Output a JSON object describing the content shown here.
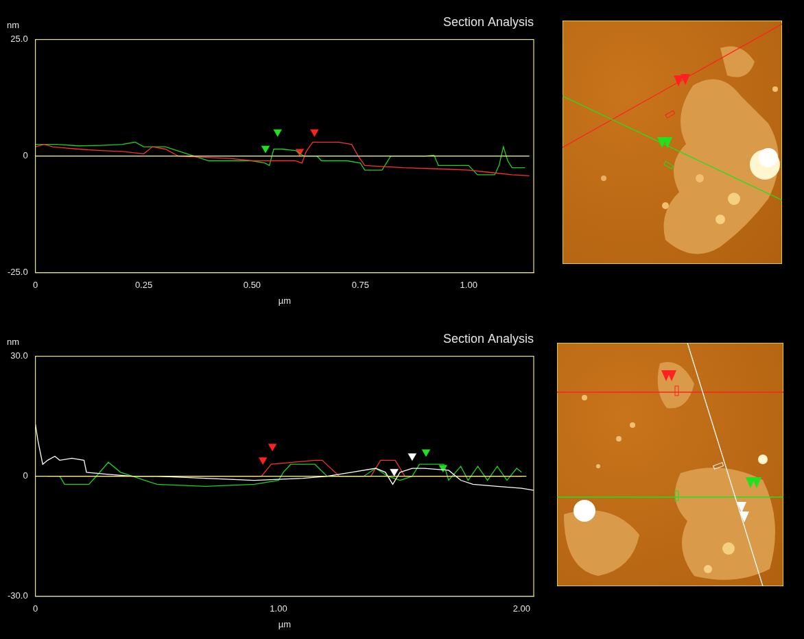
{
  "chart_data": [
    {
      "type": "line",
      "title": "Section Analysis",
      "x_label": "µm",
      "y_label": "nm",
      "xlim": [
        0,
        1.15
      ],
      "ylim": [
        -25,
        25
      ],
      "xticks": [
        0,
        0.25,
        {
          "value": 0.5,
          "label": "0.50"
        },
        0.75,
        {
          "value": 1,
          "label": "1.00"
        }
      ],
      "yticks": [
        {
          "value": -25,
          "label": "-25.0"
        },
        0,
        {
          "value": 25,
          "label": "25.0"
        }
      ],
      "grid": false,
      "tick_labels": true,
      "series": [
        {
          "color": "#ffff80",
          "x": [
            0,
            1.14
          ],
          "values": [
            0,
            0
          ]
        },
        {
          "color": "#ff3030",
          "x": [
            0,
            0.02,
            0.04,
            0.06,
            0.1,
            0.15,
            0.2,
            0.25,
            0.27,
            0.3,
            0.33,
            0.38,
            0.45,
            0.5,
            0.55,
            0.6,
            0.615,
            0.625,
            0.64,
            0.7,
            0.73,
            0.745,
            0.76,
            0.85,
            0.95,
            1.0,
            1.05,
            1.1,
            1.14
          ],
          "values": [
            2,
            2.5,
            2,
            1.8,
            1.5,
            1.2,
            1,
            0.5,
            2,
            1.5,
            0,
            -0.2,
            -0.5,
            -1,
            -1,
            -1,
            -1.5,
            1,
            3,
            3,
            2.5,
            0,
            -2,
            -2.5,
            -2.8,
            -3,
            -3.5,
            -4,
            -4.2
          ]
        },
        {
          "color": "#20d020",
          "x": [
            0,
            0.05,
            0.1,
            0.15,
            0.2,
            0.23,
            0.25,
            0.3,
            0.35,
            0.4,
            0.45,
            0.5,
            0.53,
            0.54,
            0.55,
            0.57,
            0.6,
            0.62,
            0.65,
            0.66,
            0.72,
            0.75,
            0.76,
            0.8,
            0.82,
            0.9,
            0.92,
            0.93,
            1.0,
            1.02,
            1.06,
            1.07,
            1.08,
            1.09,
            1.1,
            1.13
          ],
          "values": [
            2.5,
            2.5,
            2.2,
            2.3,
            2.5,
            3,
            2,
            2,
            0.5,
            -1,
            -1,
            -1,
            -1.5,
            -2,
            1.5,
            1.5,
            1.2,
            0,
            0,
            -1,
            -1,
            -1.5,
            -3,
            -3,
            0,
            0,
            0.2,
            -2,
            -2,
            -4,
            -4,
            -2,
            2,
            -1,
            -2.5,
            -2.5
          ]
        },
        {
          "type": "scatter",
          "marker": "triangle",
          "color": "#20e020",
          "x": [
            0.531,
            0.559
          ],
          "values": [
            1.7,
            5.2
          ]
        },
        {
          "type": "scatter",
          "marker": "triangle",
          "color": "#ff2020",
          "x": [
            0.61,
            0.644
          ],
          "values": [
            1,
            5.2
          ]
        }
      ]
    },
    {
      "type": "line",
      "title": "Section Analysis",
      "x_label": "µm",
      "y_label": "nm",
      "xlim": [
        0,
        2.05
      ],
      "ylim": [
        -30,
        30
      ],
      "xticks": [
        0,
        {
          "value": 1,
          "label": "1.00"
        },
        {
          "value": 2,
          "label": "2.00"
        }
      ],
      "yticks": [
        {
          "value": -30,
          "label": "-30.0"
        },
        0,
        {
          "value": 30,
          "label": "30.0"
        }
      ],
      "grid": false,
      "tick_labels": true,
      "series": [
        {
          "color": "#ffff80",
          "x": [
            0,
            2.02
          ],
          "values": [
            0,
            0
          ]
        },
        {
          "color": "#ffffff",
          "x": [
            0,
            0.01,
            0.03,
            0.05,
            0.08,
            0.1,
            0.15,
            0.2,
            0.21,
            0.3,
            0.4,
            0.5,
            0.7,
            0.9,
            1.1,
            1.2,
            1.3,
            1.4,
            1.44,
            1.47,
            1.5,
            1.55,
            1.6,
            1.7,
            1.75,
            1.8,
            1.9,
            2.0,
            2.05
          ],
          "values": [
            13,
            9,
            3,
            4,
            5,
            4,
            4.5,
            4,
            1,
            0.5,
            0,
            0,
            -0.5,
            -1,
            -0.5,
            0,
            1,
            2,
            1,
            -2,
            1,
            2,
            2,
            1.5,
            -1,
            -2,
            -2.5,
            -3,
            -3.5
          ]
        },
        {
          "color": "#20d020",
          "x": [
            0.1,
            0.12,
            0.15,
            0.22,
            0.25,
            0.3,
            0.35,
            0.4,
            0.45,
            0.5,
            0.7,
            0.9,
            1.0,
            1.02,
            1.05,
            1.15,
            1.2,
            1.35,
            1.4,
            1.45,
            1.5,
            1.55,
            1.58,
            1.68,
            1.7,
            1.75,
            1.78,
            1.82,
            1.86,
            1.9,
            1.94,
            1.98,
            2.0
          ],
          "values": [
            0,
            -2,
            -2,
            -2,
            0,
            3.5,
            1,
            0,
            -1,
            -2,
            -2.5,
            -2,
            -1,
            1,
            3,
            3,
            0,
            0,
            2,
            0,
            -1,
            0,
            3,
            3,
            -1,
            2.5,
            -1,
            2.5,
            -1,
            2.5,
            -1,
            2,
            1
          ]
        },
        {
          "color": "#ff3030",
          "x": [
            0.05,
            0.3,
            0.6,
            0.93,
            0.97,
            1.15,
            1.18,
            1.25,
            1.38,
            1.42,
            1.48,
            1.52,
            1.7,
            2.0
          ],
          "values": [
            0,
            0,
            0,
            0,
            3,
            4,
            4,
            0,
            0,
            4,
            4,
            0,
            0,
            0
          ]
        },
        {
          "type": "scatter",
          "marker": "triangle",
          "color": "#ff2020",
          "x": [
            0.936,
            0.975
          ],
          "values": [
            4.1,
            7.5
          ]
        },
        {
          "type": "scatter",
          "marker": "triangle",
          "color": "#ffffff",
          "x": [
            1.476,
            1.55
          ],
          "values": [
            1.2,
            5.1
          ]
        },
        {
          "type": "scatter",
          "marker": "triangle",
          "color": "#20e020",
          "x": [
            1.607,
            1.677
          ],
          "values": [
            6.1,
            2.2
          ]
        }
      ]
    }
  ]
}
